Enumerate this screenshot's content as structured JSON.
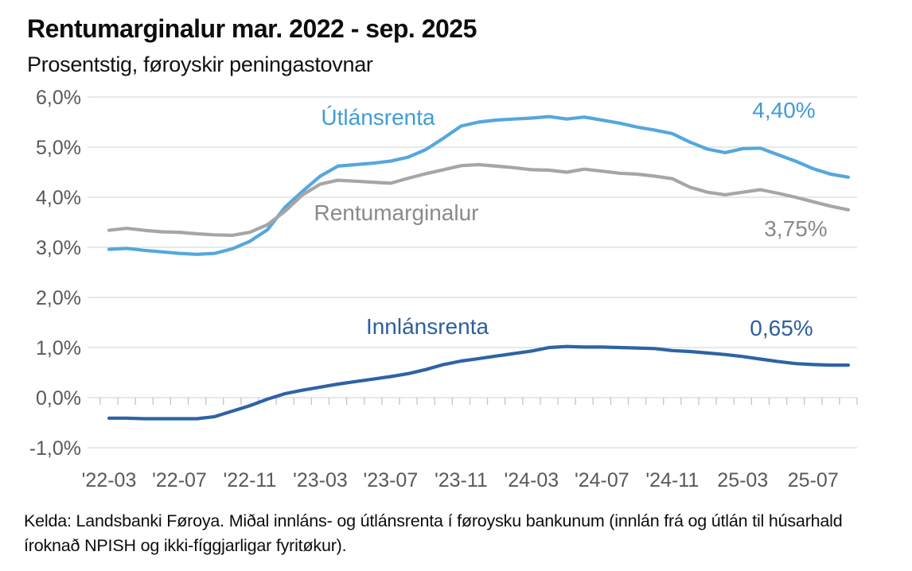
{
  "header": {
    "title": "Rentumarginalur mar. 2022 - sep. 2025",
    "subtitle": "Prosentstig, føroyskir peningastovnar"
  },
  "footer": {
    "source": "Kelda: Landsbanki Føroya. Miðal innláns- og útlánsrenta í føroysku bankunum (innlán frá og útlán til húsarhald íroknað NPISH og ikki-fíggjarligar fyritøkur)."
  },
  "chart_data": {
    "type": "line",
    "title": "Rentumarginalur mar. 2022 - sep. 2025",
    "subtitle": "Prosentstig, føroyskir peningastovnar",
    "grid": "horizontal",
    "legend": "inline-labels",
    "ylim": [
      -1.0,
      6.0
    ],
    "y_ticks": [
      6,
      5,
      4,
      3,
      2,
      1,
      0,
      -1
    ],
    "y_tick_labels": [
      "6,0%",
      "5,0%",
      "4,0%",
      "3,0%",
      "2,0%",
      "1,0%",
      "0,0%",
      "-1,0%"
    ],
    "x": [
      "2022-03",
      "2022-04",
      "2022-05",
      "2022-06",
      "2022-07",
      "2022-08",
      "2022-09",
      "2022-10",
      "2022-11",
      "2022-12",
      "2023-01",
      "2023-02",
      "2023-03",
      "2023-04",
      "2023-05",
      "2023-06",
      "2023-07",
      "2023-08",
      "2023-09",
      "2023-10",
      "2023-11",
      "2023-12",
      "2024-01",
      "2024-02",
      "2024-03",
      "2024-04",
      "2024-05",
      "2024-06",
      "2024-07",
      "2024-08",
      "2024-09",
      "2024-10",
      "2024-11",
      "2024-12",
      "2025-01",
      "2025-02",
      "2025-03",
      "2025-04",
      "2025-05",
      "2025-06",
      "2025-07",
      "2025-08",
      "2025-09"
    ],
    "x_tick_labels": [
      "'22-03",
      "'22-07",
      "'22-11",
      "'23-03",
      "'23-07",
      "'23-11",
      "'24-03",
      "'24-07",
      "'24-11",
      "25-03",
      "25-07"
    ],
    "x_tick_every_n_months": 4,
    "axis_text_color": "#595959",
    "gridline_color": "#d9d9d9",
    "tickmark_color": "#c3c3c3",
    "series": [
      {
        "id": "utlansrenta",
        "name": "Útlánsrenta",
        "end_label": "4,40%",
        "color": "#55a7dd",
        "label_color": "#3f9cd6",
        "values": [
          2.96,
          2.98,
          2.94,
          2.91,
          2.88,
          2.86,
          2.88,
          2.97,
          3.12,
          3.35,
          3.8,
          4.12,
          4.42,
          4.62,
          4.65,
          4.68,
          4.72,
          4.8,
          4.95,
          5.18,
          5.42,
          5.5,
          5.54,
          5.56,
          5.58,
          5.61,
          5.56,
          5.6,
          5.54,
          5.48,
          5.4,
          5.34,
          5.27,
          5.1,
          4.96,
          4.89,
          4.97,
          4.98,
          4.85,
          4.72,
          4.57,
          4.46,
          4.4
        ]
      },
      {
        "id": "rentumarginalur",
        "name": "Rentumarginalur",
        "end_label": "3,75%",
        "color": "#a6a6a6",
        "label_color": "#8a8a8a",
        "values": [
          3.34,
          3.38,
          3.34,
          3.31,
          3.3,
          3.27,
          3.25,
          3.24,
          3.3,
          3.45,
          3.72,
          4.05,
          4.26,
          4.34,
          4.32,
          4.3,
          4.28,
          4.38,
          4.47,
          4.55,
          4.63,
          4.65,
          4.62,
          4.59,
          4.55,
          4.54,
          4.5,
          4.56,
          4.52,
          4.48,
          4.46,
          4.42,
          4.37,
          4.2,
          4.1,
          4.05,
          4.1,
          4.15,
          4.08,
          4.0,
          3.91,
          3.82,
          3.75
        ]
      },
      {
        "id": "innlansrenta",
        "name": "Innlánsrenta",
        "end_label": "0,65%",
        "color": "#2e63a5",
        "label_color": "#2e5f9e",
        "values": [
          -0.41,
          -0.41,
          -0.42,
          -0.42,
          -0.42,
          -0.42,
          -0.38,
          -0.27,
          -0.16,
          -0.03,
          0.08,
          0.15,
          0.21,
          0.27,
          0.32,
          0.37,
          0.42,
          0.48,
          0.56,
          0.66,
          0.73,
          0.78,
          0.83,
          0.88,
          0.93,
          1.0,
          1.02,
          1.01,
          1.01,
          1.0,
          0.99,
          0.98,
          0.94,
          0.92,
          0.89,
          0.86,
          0.82,
          0.77,
          0.72,
          0.68,
          0.66,
          0.65,
          0.65
        ]
      }
    ]
  }
}
